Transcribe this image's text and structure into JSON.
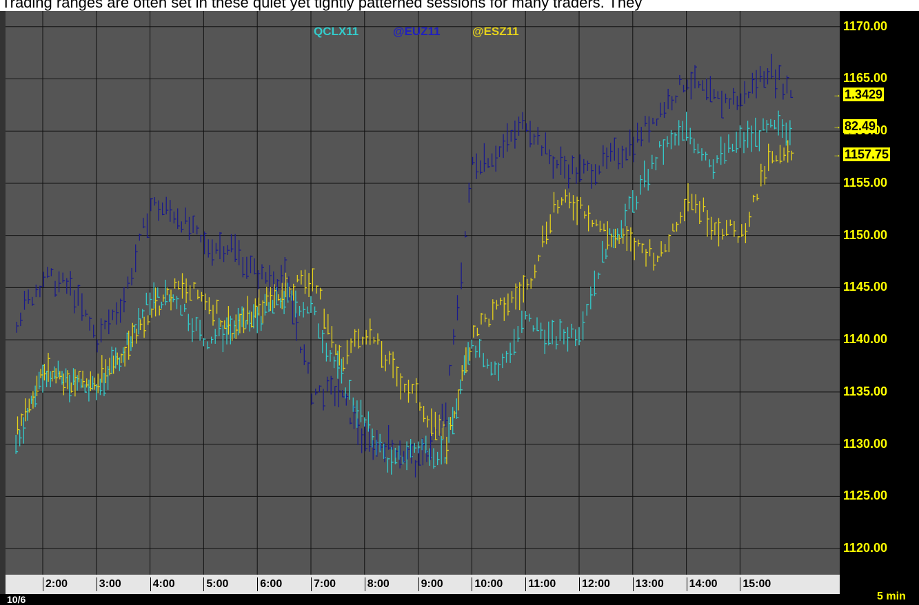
{
  "header": {
    "text": "Trading ranges are often set in these quiet yet tightly patterned sessions for many traders. They"
  },
  "chart_data": {
    "type": "bar",
    "subtype": "ohlc",
    "xlabel": "",
    "ylabel": "",
    "date_label": "10/6",
    "interval_label": "5 min",
    "x_ticks": [
      "2:00",
      "3:00",
      "4:00",
      "5:00",
      "6:00",
      "7:00",
      "8:00",
      "9:00",
      "10:00",
      "11:00",
      "12:00",
      "13:00",
      "14:00",
      "15:00"
    ],
    "y_ticks": [
      "1120.00",
      "1125.00",
      "1130.00",
      "1135.00",
      "1140.00",
      "1145.00",
      "1150.00",
      "1155.00",
      "1160.00",
      "1165.00",
      "1170.00"
    ],
    "ylim": [
      1117.5,
      1171.5
    ],
    "grid": true,
    "legend_position": "top-center",
    "series": [
      {
        "name": "QCLX11",
        "color": "#33cccc",
        "last_value": "82.49",
        "points": [
          [
            1.5,
            1130
          ],
          [
            2.0,
            1137
          ],
          [
            2.5,
            1136
          ],
          [
            3.0,
            1135
          ],
          [
            3.5,
            1139
          ],
          [
            4.0,
            1144
          ],
          [
            4.5,
            1144
          ],
          [
            5.0,
            1140
          ],
          [
            5.5,
            1141
          ],
          [
            6.0,
            1142
          ],
          [
            6.5,
            1144
          ],
          [
            7.0,
            1143
          ],
          [
            7.5,
            1137
          ],
          [
            8.0,
            1132
          ],
          [
            8.5,
            1128
          ],
          [
            9.0,
            1130
          ],
          [
            9.5,
            1129
          ],
          [
            10.0,
            1140
          ],
          [
            10.5,
            1137
          ],
          [
            11.0,
            1142
          ],
          [
            11.5,
            1140
          ],
          [
            12.0,
            1141
          ],
          [
            12.5,
            1149
          ],
          [
            13.0,
            1153
          ],
          [
            13.5,
            1158
          ],
          [
            14.0,
            1160
          ],
          [
            14.5,
            1157
          ],
          [
            15.0,
            1159
          ],
          [
            15.5,
            1160
          ],
          [
            16.0,
            1160.5
          ]
        ]
      },
      {
        "name": "@EUZ11",
        "color": "#1a1a8c",
        "last_value": "1.3429",
        "points": [
          [
            1.5,
            1142
          ],
          [
            2.0,
            1146
          ],
          [
            2.5,
            1145
          ],
          [
            3.0,
            1140
          ],
          [
            3.5,
            1144
          ],
          [
            4.0,
            1153
          ],
          [
            4.5,
            1152
          ],
          [
            5.0,
            1149
          ],
          [
            5.5,
            1149
          ],
          [
            6.0,
            1146
          ],
          [
            6.5,
            1146
          ],
          [
            7.0,
            1135
          ],
          [
            7.5,
            1135
          ],
          [
            8.0,
            1130
          ],
          [
            8.5,
            1130
          ],
          [
            9.0,
            1128
          ],
          [
            9.5,
            1133
          ],
          [
            10.0,
            1157
          ],
          [
            10.5,
            1158
          ],
          [
            11.0,
            1161
          ],
          [
            11.5,
            1157
          ],
          [
            12.0,
            1156
          ],
          [
            12.5,
            1157
          ],
          [
            13.0,
            1159
          ],
          [
            13.5,
            1162
          ],
          [
            14.0,
            1165
          ],
          [
            14.5,
            1163
          ],
          [
            15.0,
            1163
          ],
          [
            15.5,
            1166
          ],
          [
            16.0,
            1163.5
          ]
        ]
      },
      {
        "name": "@ESZ11",
        "color": "#e6d21a",
        "last_value": "1157.75",
        "points": [
          [
            1.5,
            1132
          ],
          [
            2.0,
            1137
          ],
          [
            2.5,
            1136
          ],
          [
            3.0,
            1136
          ],
          [
            3.5,
            1139
          ],
          [
            4.0,
            1143
          ],
          [
            4.5,
            1145
          ],
          [
            5.0,
            1144
          ],
          [
            5.5,
            1141
          ],
          [
            6.0,
            1143
          ],
          [
            6.5,
            1145
          ],
          [
            7.0,
            1146
          ],
          [
            7.5,
            1138
          ],
          [
            8.0,
            1141
          ],
          [
            8.5,
            1137
          ],
          [
            9.0,
            1134
          ],
          [
            9.5,
            1130
          ],
          [
            10.0,
            1141
          ],
          [
            10.5,
            1143
          ],
          [
            11.0,
            1145
          ],
          [
            11.5,
            1153
          ],
          [
            12.0,
            1153
          ],
          [
            12.5,
            1150
          ],
          [
            13.0,
            1149
          ],
          [
            13.5,
            1148
          ],
          [
            14.0,
            1154
          ],
          [
            14.5,
            1151
          ],
          [
            15.0,
            1150
          ],
          [
            15.5,
            1157
          ],
          [
            16.0,
            1157.75
          ]
        ]
      }
    ]
  }
}
